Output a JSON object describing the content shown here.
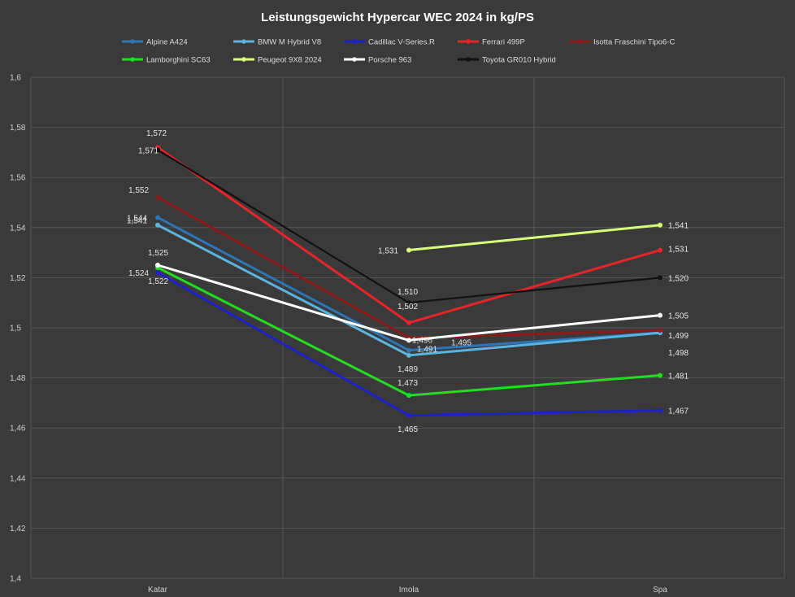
{
  "chart_data": {
    "type": "line",
    "title": "Leistungsgewicht Hypercar WEC 2024 in kg/PS",
    "categories": [
      "Katar",
      "Imola",
      "Spa"
    ],
    "ylim": [
      1.4,
      1.6
    ],
    "yticks": [
      "1,4",
      "1,42",
      "1,44",
      "1,46",
      "1,48",
      "1,5",
      "1,52",
      "1,54",
      "1,56",
      "1,58",
      "1,6"
    ],
    "grid": true,
    "legend_position": "top",
    "series": [
      {
        "name": "Alpine A424",
        "color": "#2e75b6",
        "values": [
          1.544,
          1.491,
          1.498
        ]
      },
      {
        "name": "BMW M Hybrid V8",
        "color": "#5ab4e0",
        "values": [
          1.541,
          1.489,
          1.498
        ]
      },
      {
        "name": "Cadillac V-Series.R",
        "color": "#1f22c9",
        "values": [
          1.522,
          1.465,
          1.467
        ]
      },
      {
        "name": "Ferrari 499P",
        "color": "#e8232a",
        "values": [
          1.572,
          1.502,
          1.531
        ]
      },
      {
        "name": "Isotta Fraschini Tipo6-C",
        "color": "#8b1a1a",
        "values": [
          1.552,
          1.496,
          1.499
        ]
      },
      {
        "name": "Lamborghini SC63",
        "color": "#22dd22",
        "values": [
          1.524,
          1.473,
          1.481
        ]
      },
      {
        "name": "Peugeot 9X8 2024",
        "color": "#d8ff7a",
        "values": [
          null,
          1.531,
          1.541
        ]
      },
      {
        "name": "Porsche 963",
        "color": "#ffffff",
        "values": [
          1.525,
          1.495,
          1.505
        ]
      },
      {
        "name": "Toyota GR010 Hybrid",
        "color": "#111111",
        "values": [
          1.571,
          1.51,
          1.52
        ]
      }
    ],
    "data_labels": [
      {
        "series": "Ferrari 499P",
        "cat": 0,
        "text": "1,572"
      },
      {
        "series": "Toyota GR010 Hybrid",
        "cat": 0,
        "text": "1,571"
      },
      {
        "series": "Isotta Fraschini Tipo6-C",
        "cat": 0,
        "text": "1,552"
      },
      {
        "series": "Alpine A424",
        "cat": 0,
        "text": "1,544"
      },
      {
        "series": "BMW M Hybrid V8",
        "cat": 0,
        "text": "1,541"
      },
      {
        "series": "Porsche 963",
        "cat": 0,
        "text": "1,525"
      },
      {
        "series": "Lamborghini SC63",
        "cat": 0,
        "text": "1,524"
      },
      {
        "series": "Cadillac V-Series.R",
        "cat": 0,
        "text": "1,522"
      },
      {
        "series": "Peugeot 9X8 2024",
        "cat": 1,
        "text": "1,531"
      },
      {
        "series": "Toyota GR010 Hybrid",
        "cat": 1,
        "text": "1,510"
      },
      {
        "series": "Ferrari 499P",
        "cat": 1,
        "text": "1,502"
      },
      {
        "series": "Isotta Fraschini Tipo6-C",
        "cat": 1,
        "text": "1,496"
      },
      {
        "series": "Porsche 963",
        "cat": 1,
        "text": "1,495"
      },
      {
        "series": "Alpine A424",
        "cat": 1,
        "text": "1,491"
      },
      {
        "series": "BMW M Hybrid V8",
        "cat": 1,
        "text": "1,489"
      },
      {
        "series": "Lamborghini SC63",
        "cat": 1,
        "text": "1,473"
      },
      {
        "series": "Cadillac V-Series.R",
        "cat": 1,
        "text": "1,465"
      },
      {
        "series": "Peugeot 9X8 2024",
        "cat": 2,
        "text": "1,541"
      },
      {
        "series": "Ferrari 499P",
        "cat": 2,
        "text": "1,531"
      },
      {
        "series": "Toyota GR010 Hybrid",
        "cat": 2,
        "text": "1,520"
      },
      {
        "series": "Porsche 963",
        "cat": 2,
        "text": "1,505"
      },
      {
        "series": "Isotta Fraschini Tipo6-C",
        "cat": 2,
        "text": "1,499"
      },
      {
        "series": "Alpine A424",
        "cat": 2,
        "text": "1,498"
      },
      {
        "series": "Lamborghini SC63",
        "cat": 2,
        "text": "1,481"
      },
      {
        "series": "Cadillac V-Series.R",
        "cat": 2,
        "text": "1,467"
      }
    ]
  }
}
